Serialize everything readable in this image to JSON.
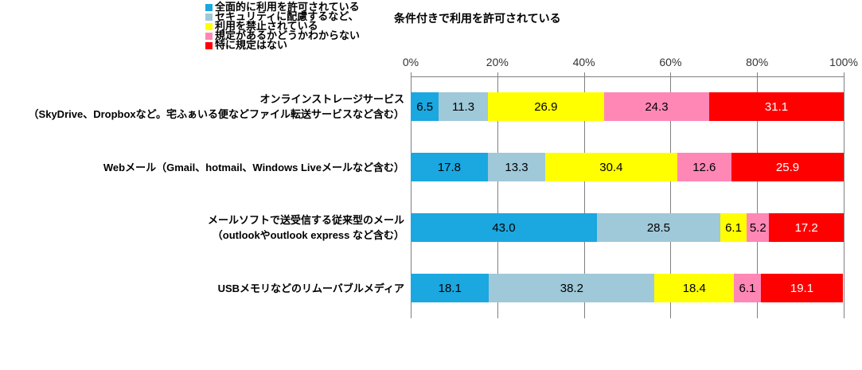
{
  "legend": {
    "items": [
      {
        "label": "全面的に利用を許可されている",
        "color": "#1BA7E0"
      },
      {
        "label": "セキュリティに配慮するなど、",
        "color": "#9FC8D8"
      },
      {
        "label": "利用を禁止されている",
        "color": "#FFFF00"
      },
      {
        "label": "規定があるかどうかわからない",
        "color": "#FF87B5"
      },
      {
        "label": "特に規定はない",
        "color": "#FF0000"
      }
    ],
    "wrap_note": "条件付きで利用を許可されている"
  },
  "chart_data": {
    "type": "bar",
    "orientation": "horizontal",
    "stacked": true,
    "unit": "percent",
    "xlim": [
      0,
      100
    ],
    "x_ticks": [
      "0%",
      "20%",
      "40%",
      "60%",
      "80%",
      "100%"
    ],
    "grid": true,
    "gridline_color": "#808080",
    "legend_position": "top-left",
    "categories": [
      [
        "オンラインストレージサービス",
        "（SkyDrive、Dropboxなど。宅ふぁいる便などファイル転送サービスなど含む）"
      ],
      [
        "Webメール（Gmail、hotmail、Windows Liveメールなど含む）"
      ],
      [
        "メールソフトで送受信する従来型のメール",
        "（outlookやoutlook express など含む）"
      ],
      [
        "USBメモリなどのリムーバブルメディア"
      ]
    ],
    "series": [
      {
        "name": "全面的に利用を許可されている",
        "color": "#1BA7E0",
        "label_color": "#000000",
        "values": [
          6.5,
          17.8,
          43.0,
          18.1
        ]
      },
      {
        "name": "セキュリティに配慮するなど、条件付きで利用を許可されている",
        "color": "#9FC8D8",
        "label_color": "#000000",
        "values": [
          11.3,
          13.3,
          28.5,
          38.2
        ]
      },
      {
        "name": "利用を禁止されている",
        "color": "#FFFF00",
        "label_color": "#000000",
        "values": [
          26.9,
          30.4,
          6.1,
          18.4
        ]
      },
      {
        "name": "規定があるかどうかわからない",
        "color": "#FF87B5",
        "label_color": "#000000",
        "values": [
          24.3,
          12.6,
          5.2,
          6.1
        ]
      },
      {
        "name": "特に規定はない",
        "color": "#FF0000",
        "label_color": "#FFFFFF",
        "values": [
          31.1,
          25.9,
          17.2,
          19.1
        ]
      }
    ]
  }
}
